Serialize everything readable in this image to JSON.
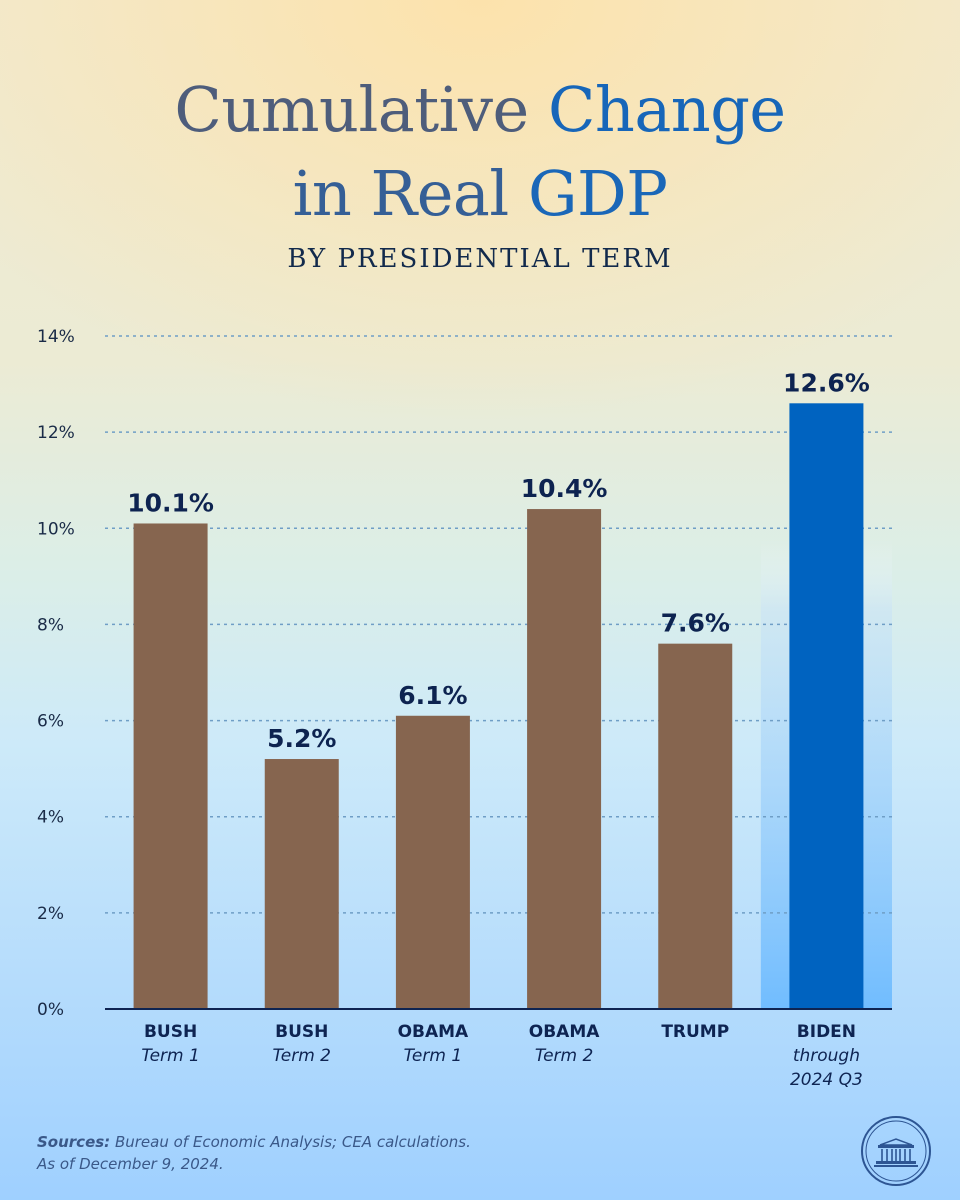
{
  "title": {
    "part1": "Cumulative",
    "part2": "Change",
    "part3": "in Real",
    "part4": "GDP",
    "subtitle": "BY PRESIDENTIAL TERM"
  },
  "chart_data": {
    "type": "bar",
    "title": "Cumulative Change in Real GDP",
    "subtitle": "BY PRESIDENTIAL TERM",
    "xlabel": "",
    "ylabel": "",
    "ylim": [
      0,
      14
    ],
    "yticks": [
      0,
      2,
      4,
      6,
      8,
      10,
      12,
      14
    ],
    "ytick_labels": [
      "0%",
      "2%",
      "4%",
      "6%",
      "8%",
      "10%",
      "12%",
      "14%"
    ],
    "grid": true,
    "categories": [
      {
        "name": "BUSH",
        "sub": "Term 1"
      },
      {
        "name": "BUSH",
        "sub": "Term 2"
      },
      {
        "name": "OBAMA",
        "sub": "Term 1"
      },
      {
        "name": "OBAMA",
        "sub": "Term 2"
      },
      {
        "name": "TRUMP",
        "sub": ""
      },
      {
        "name": "BIDEN",
        "sub": "through",
        "sub2": "2024 Q3"
      }
    ],
    "values": [
      10.1,
      5.2,
      6.1,
      10.4,
      7.6,
      12.6
    ],
    "value_labels": [
      "10.1%",
      "5.2%",
      "6.1%",
      "10.4%",
      "7.6%",
      "12.6%"
    ],
    "colors": [
      "#86654f",
      "#86654f",
      "#86654f",
      "#86654f",
      "#86654f",
      "#0063c0"
    ],
    "highlight_index": 5
  },
  "footer": {
    "sources_label": "Sources:",
    "sources_text": "Bureau of Economic Analysis; CEA calculations.",
    "as_of": "As of December 9, 2024."
  },
  "logo": {
    "icon": "white-house-seal-icon"
  }
}
